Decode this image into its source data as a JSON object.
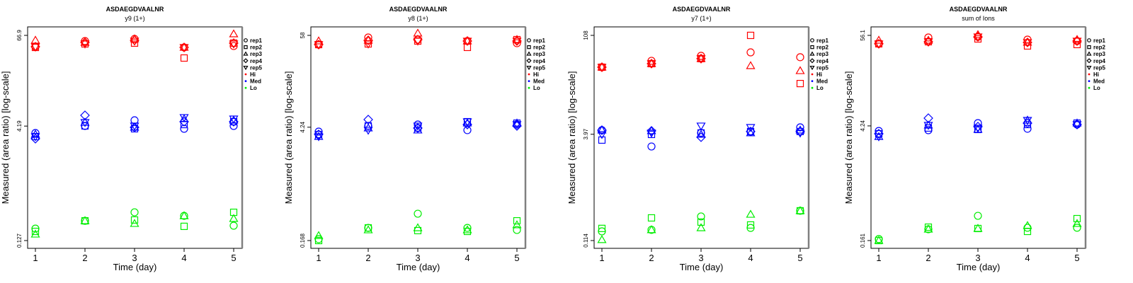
{
  "chart_data": [
    {
      "type": "scatter",
      "title": "ASDAEGDVAALNR",
      "subtitle": "y9 (1+)",
      "xlabel": "Time (day)",
      "ylabel": "Measured (area ratio) [log-scale]",
      "yscale": "log",
      "ylim": [
        0.127,
        66.9
      ],
      "yticks": [
        "0.127",
        "4.19",
        "66.9"
      ],
      "ytick_values": [
        0.127,
        4.19,
        66.9
      ],
      "xticks": [
        1,
        2,
        3,
        4,
        5
      ],
      "xlim": [
        0.85,
        5.15
      ],
      "series": [
        {
          "name": "Hi",
          "color": "red",
          "reps": {
            "rep1": [
              47.3,
              56.3,
              60.0,
              46.3,
              48.3
            ],
            "rep2": [
              46.3,
              51.6,
              52.8,
              33.5,
              52.8
            ],
            "rep3": [
              57.5,
              53.9,
              60.0,
              46.3,
              69.8
            ],
            "rep4": [
              47.3,
              53.9,
              57.5,
              46.3,
              52.8
            ],
            "rep5": [
              47.3,
              51.6,
              56.3,
              46.3,
              51.6
            ]
          }
        },
        {
          "name": "Med",
          "color": "blue",
          "reps": {
            "rep1": [
              3.39,
              4.21,
              5.0,
              3.86,
              4.21
            ],
            "rep2": [
              3.04,
              4.21,
              3.86,
              4.39,
              4.79
            ],
            "rep3": [
              3.25,
              4.69,
              4.03,
              5.22,
              5.0
            ],
            "rep4": [
              2.85,
              5.82,
              4.03,
              4.79,
              4.79
            ],
            "rep5": [
              3.04,
              4.69,
              4.21,
              5.46,
              5.22
            ]
          }
        },
        {
          "name": "Lo",
          "color": "green",
          "reps": {
            "rep1": [
              0.183,
              0.232,
              0.301,
              0.27,
              0.2
            ],
            "rep2": [
              0.168,
              0.232,
              0.238,
              0.196,
              0.301
            ],
            "rep3": [
              0.154,
              0.232,
              0.213,
              0.27,
              0.248
            ]
          }
        }
      ]
    },
    {
      "type": "scatter",
      "title": "ASDAEGDVAALNR",
      "subtitle": "y8 (1+)",
      "xlabel": "Time (day)",
      "ylabel": "Measured (area ratio) [log-scale]",
      "yscale": "log",
      "ylim": [
        0.168,
        58
      ],
      "yticks": [
        "0.168",
        "4.24",
        "58"
      ],
      "ytick_values": [
        0.168,
        4.24,
        58
      ],
      "xticks": [
        1,
        2,
        3,
        4,
        5
      ],
      "xlim": [
        0.85,
        5.15
      ],
      "series": [
        {
          "name": "Hi",
          "color": "red",
          "reps": {
            "rep1": [
              44.6,
              54.6,
              51.4,
              49.4,
              46.4
            ],
            "rep2": [
              44.6,
              45.5,
              49.4,
              41.2,
              51.4
            ],
            "rep3": [
              49.4,
              50.4,
              61.6,
              49.4,
              51.4
            ],
            "rep4": [
              44.6,
              50.4,
              51.4,
              49.4,
              49.4
            ],
            "rep5": [
              44.6,
              45.5,
              49.4,
              49.4,
              49.4
            ]
          }
        },
        {
          "name": "Med",
          "color": "blue",
          "reps": {
            "rep1": [
              3.74,
              4.4,
              4.58,
              3.9,
              4.58
            ],
            "rep2": [
              3.45,
              4.4,
              4.14,
              4.96,
              4.76
            ],
            "rep3": [
              3.25,
              4.14,
              3.9,
              4.76,
              4.76
            ],
            "rep4": [
              3.45,
              5.27,
              4.14,
              4.58,
              4.4
            ],
            "rep5": [
              3.25,
              3.9,
              4.4,
              4.96,
              4.58
            ]
          }
        },
        {
          "name": "Lo",
          "color": "green",
          "reps": {
            "rep1": [
              0.175,
              0.241,
              0.361,
              0.241,
              0.227
            ],
            "rep2": [
              0.168,
              0.241,
              0.223,
              0.218,
              0.295
            ],
            "rep3": [
              0.193,
              0.227,
              0.241,
              0.227,
              0.262
            ]
          }
        }
      ]
    },
    {
      "type": "scatter",
      "title": "ASDAEGDVAALNR",
      "subtitle": "y7 (1+)",
      "xlabel": "Time (day)",
      "ylabel": "Measured (area ratio) [log-scale]",
      "yscale": "log",
      "ylim": [
        0.114,
        108
      ],
      "yticks": [
        "0.114",
        "3.97",
        "108"
      ],
      "ytick_values": [
        0.114,
        3.97,
        108
      ],
      "xticks": [
        1,
        2,
        3,
        4,
        5
      ],
      "xlim": [
        0.85,
        5.15
      ],
      "series": [
        {
          "name": "Hi",
          "color": "red",
          "reps": {
            "rep1": [
              37.3,
              46.2,
              54.6,
              61.2,
              52.1
            ],
            "rep2": [
              37.3,
              42.0,
              49.7,
              108,
              21.6
            ],
            "rep3": [
              37.3,
              42.0,
              49.7,
              39.1,
              33.1
            ],
            "rep4": [
              37.3,
              42.0,
              49.7,
              null,
              null
            ],
            "rep5": [
              37.3,
              42.0,
              49.7,
              null,
              null
            ]
          }
        },
        {
          "name": "Med",
          "color": "blue",
          "reps": {
            "rep1": [
              4.55,
              2.64,
              4.15,
              4.35,
              5.0
            ],
            "rep2": [
              3.27,
              3.95,
              4.15,
              4.35,
              4.35
            ],
            "rep3": [
              4.55,
              4.45,
              3.95,
              4.15,
              4.55
            ],
            "rep4": [
              4.55,
              4.45,
              3.6,
              4.35,
              4.35
            ],
            "rep5": [
              3.95,
              4.15,
              5.25,
              5.0,
              4.15
            ]
          }
        },
        {
          "name": "Lo",
          "color": "green",
          "reps": {
            "rep1": [
              0.155,
              0.163,
              0.255,
              0.174,
              0.308
            ],
            "rep2": [
              0.171,
              0.243,
              0.211,
              0.192,
              0.308
            ],
            "rep3": [
              0.117,
              0.163,
              0.174,
              0.273,
              0.308
            ]
          }
        }
      ]
    },
    {
      "type": "scatter",
      "title": "ASDAEGDVAALNR",
      "subtitle": "sum of Ions",
      "xlabel": "Time (day)",
      "ylabel": "Measured (area ratio) [log-scale]",
      "yscale": "log",
      "ylim": [
        0.161,
        56.1
      ],
      "yticks": [
        "0.161",
        "4.24",
        "56.1"
      ],
      "ytick_values": [
        0.161,
        4.24,
        56.1
      ],
      "xticks": [
        1,
        2,
        3,
        4,
        5
      ],
      "xlim": [
        0.85,
        5.15
      ],
      "series": [
        {
          "name": "Hi",
          "color": "red",
          "reps": {
            "rep1": [
              44.1,
              52.8,
              53.9,
              49.7,
              47.7
            ],
            "rep2": [
              44.1,
              46.8,
              50.7,
              41.5,
              43.2
            ],
            "rep3": [
              48.7,
              48.7,
              57.2,
              45.9,
              49.7
            ],
            "rep4": [
              44.1,
              46.8,
              53.9,
              45.9,
              47.7
            ],
            "rep5": [
              44.1,
              46.8,
              53.9,
              45.9,
              47.7
            ]
          }
        },
        {
          "name": "Med",
          "color": "blue",
          "reps": {
            "rep1": [
              3.67,
              3.75,
              4.59,
              3.91,
              4.41
            ],
            "rep2": [
              3.39,
              3.99,
              3.83,
              4.41,
              4.59
            ],
            "rep3": [
              3.12,
              4.32,
              3.83,
              4.98,
              4.59
            ],
            "rep4": [
              3.39,
              5.29,
              4.15,
              4.59,
              4.41
            ],
            "rep5": [
              3.12,
              4.32,
              3.99,
              4.98,
              4.41
            ]
          }
        },
        {
          "name": "Lo",
          "color": "green",
          "reps": {
            "rep1": [
              0.168,
              0.222,
              0.326,
              0.232,
              0.232
            ],
            "rep2": [
              0.161,
              0.236,
              0.227,
              0.209,
              0.301
            ],
            "rep3": [
              0.161,
              0.222,
              0.227,
              0.246,
              0.261
            ]
          }
        }
      ]
    }
  ],
  "legend": {
    "placement": "right",
    "shape_entries": [
      {
        "label": "rep1",
        "shape": "circle"
      },
      {
        "label": "rep2",
        "shape": "square"
      },
      {
        "label": "rep3",
        "shape": "triangle-up"
      },
      {
        "label": "rep4",
        "shape": "diamond"
      },
      {
        "label": "rep5",
        "shape": "triangle-down"
      }
    ],
    "color_entries": [
      {
        "label": "Hi",
        "color": "#ff0000"
      },
      {
        "label": "Med",
        "color": "#0000ff"
      },
      {
        "label": "Lo",
        "color": "#00ee00"
      }
    ]
  },
  "colors": {
    "red": "#ff0000",
    "blue": "#0000ff",
    "green": "#00ee00",
    "axis": "#000000",
    "box_shadow": "#808080"
  }
}
